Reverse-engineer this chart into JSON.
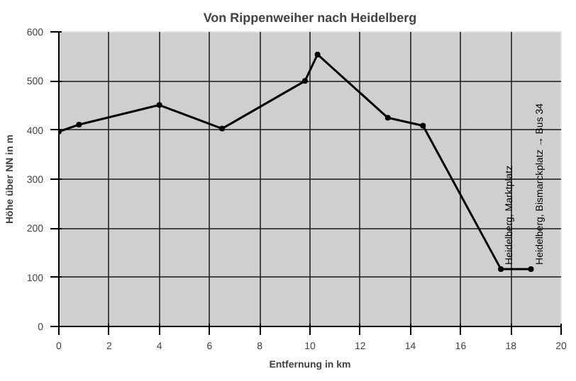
{
  "chart_data": {
    "type": "line",
    "title": "Von Rippenweiher nach Heidelberg",
    "xlabel": "Entfernung in km",
    "ylabel": "Höhe über NN in m",
    "x": [
      0,
      0.8,
      4,
      6.5,
      9.8,
      10.3,
      13.1,
      14.5,
      17.6,
      18.8
    ],
    "series": [
      {
        "color": "#000000",
        "values": [
          397,
          411,
          451,
          403,
          500,
          554,
          425,
          409,
          117,
          117
        ]
      }
    ],
    "xlim": [
      0,
      20
    ],
    "xticks": [
      0,
      2,
      4,
      6,
      8,
      10,
      12,
      14,
      16,
      18,
      20
    ],
    "ylim": [
      0,
      600
    ],
    "yticks": [
      0,
      100,
      200,
      300,
      400,
      500,
      600
    ],
    "grid": true,
    "marker": "circle",
    "annotations": [
      {
        "text": "Heidelberg, Marktplatz",
        "x": 17.6,
        "y": 117
      },
      {
        "text": "Heidelberg, Bismarckplatz → Bus 34",
        "x": 18.8,
        "y": 117
      }
    ]
  }
}
